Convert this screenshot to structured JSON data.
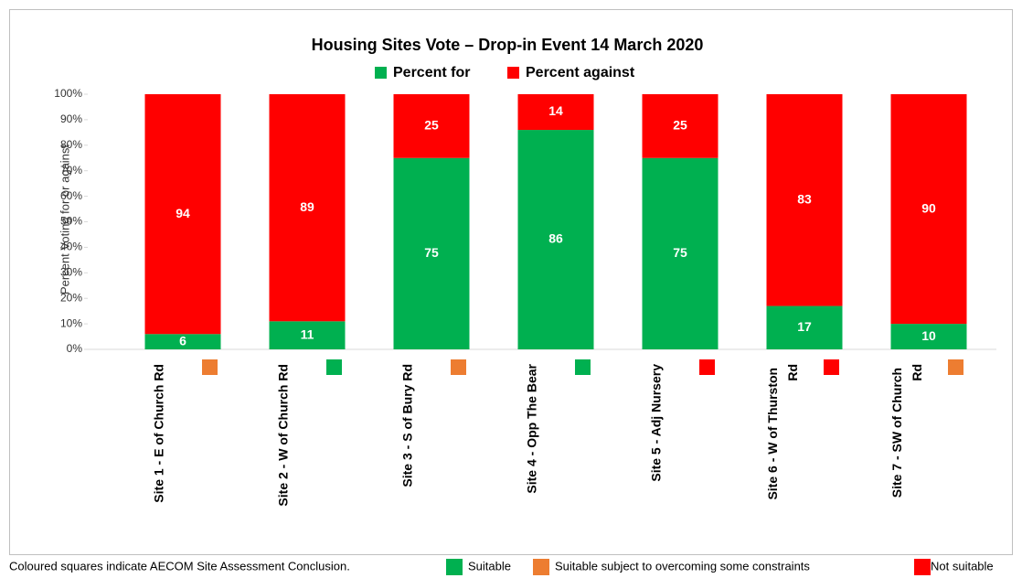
{
  "chart_data": {
    "type": "stacked_bar",
    "title": "Housing Sites Vote – Drop-in Event 14 March 2020",
    "y_axis_label": "Percent Voting for or against",
    "categories": [
      "Site 1 - E of Church Rd",
      "Site 2 - W of Church Rd",
      "Site 3 - S of Bury Rd",
      "Site 4 - Opp The Bear",
      "Site 5 - Adj Nursery",
      "Site 6 - W of Thurston Rd",
      "Site 7 - SW of Church Rd"
    ],
    "series": [
      {
        "name": "Percent for",
        "color": "#00b050",
        "values": [
          6,
          11,
          75,
          86,
          75,
          17,
          10
        ]
      },
      {
        "name": "Percent against",
        "color": "#ff0000",
        "values": [
          94,
          89,
          25,
          14,
          25,
          83,
          90
        ]
      }
    ],
    "ylim": [
      0,
      100
    ],
    "yticks": [
      {
        "value": 0,
        "label": "0%"
      },
      {
        "value": 10,
        "label": "10%"
      },
      {
        "value": 20,
        "label": "20%"
      },
      {
        "value": 30,
        "label": "30%"
      },
      {
        "value": 40,
        "label": "40%"
      },
      {
        "value": 50,
        "label": "50%"
      },
      {
        "value": 60,
        "label": "60%"
      },
      {
        "value": 70,
        "label": "70%"
      },
      {
        "value": 80,
        "label": "80%"
      },
      {
        "value": 90,
        "label": "90%"
      },
      {
        "value": 100,
        "label": "100%"
      }
    ],
    "legend_position": "top",
    "assessment_colors": [
      "#ed7d31",
      "#00b050",
      "#ed7d31",
      "#00b050",
      "#ff0000",
      "#ff0000",
      "#ed7d31"
    ],
    "footnote": {
      "text": "Coloured squares indicate AECOM Site Assessment Conclusion.",
      "items": [
        {
          "label": "Suitable",
          "color": "#00b050"
        },
        {
          "label": "Suitable subject to overcoming some constraints",
          "color": "#ed7d31"
        },
        {
          "label": "Not suitable",
          "color": "#ff0000"
        }
      ]
    }
  }
}
